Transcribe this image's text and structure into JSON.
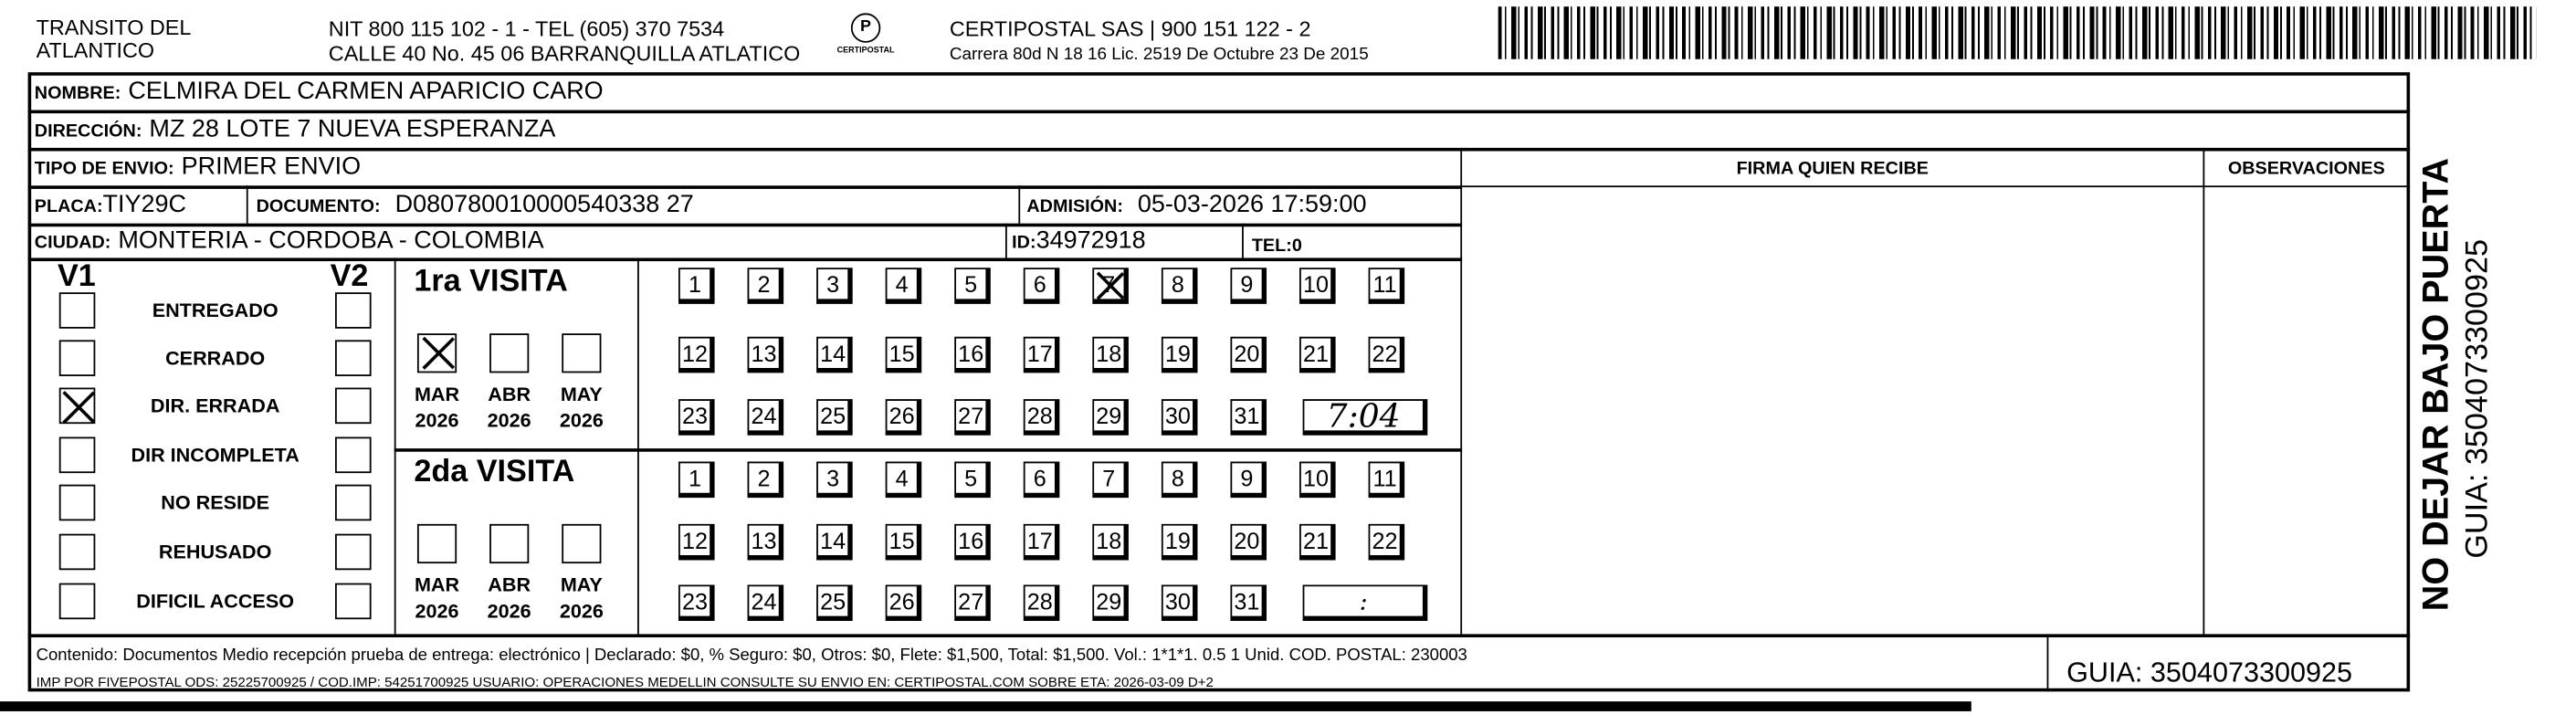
{
  "header": {
    "org_line1": "TRANSITO DEL",
    "org_line2": "ATLANTICO",
    "nit_line": "NIT 800 115 102 - 1 - TEL (605) 370 7534",
    "address_line": "CALLE 40 No. 45 06 BARRANQUILLA ATLATICO",
    "logo_text": "CERTIPOSTAL",
    "company_line": "CERTIPOSTAL SAS | 900 151 122 - 2",
    "license_line": "Carrera 80d N 18 16  Lic. 2519 De Octubre 23 De 2015"
  },
  "fields": {
    "nombre_label": "NOMBRE:",
    "nombre": "CELMIRA DEL CARMEN APARICIO CARO",
    "direccion_label": "DIRECCIÓN:",
    "direccion": "MZ 28 LOTE 7 NUEVA ESPERANZA",
    "tipo_label": "TIPO DE ENVIO:",
    "tipo": "PRIMER ENVIO",
    "placa_label": "PLACA:",
    "placa": "TIY29C",
    "documento_label": "DOCUMENTO:",
    "documento": "D080780010000540338 27",
    "admision_label": "ADMISIÓN:",
    "admision": "05-03-2026 17:59:00",
    "ciudad_label": "CIUDAD:",
    "ciudad": "MONTERIA - CORDOBA - COLOMBIA",
    "id_label": "ID:",
    "id": "34972918",
    "tel_label": "TEL:",
    "tel": "0"
  },
  "firma_label": "FIRMA QUIEN RECIBE",
  "observaciones_label": "OBSERVACIONES",
  "status": {
    "v1_label": "V1",
    "v2_label": "V2",
    "items": [
      {
        "label": "ENTREGADO",
        "v1": false,
        "v2": false
      },
      {
        "label": "CERRADO",
        "v1": false,
        "v2": false
      },
      {
        "label": "DIR. ERRADA",
        "v1": true,
        "v2": false
      },
      {
        "label": "DIR INCOMPLETA",
        "v1": false,
        "v2": false
      },
      {
        "label": "NO RESIDE",
        "v1": false,
        "v2": false
      },
      {
        "label": "REHUSADO",
        "v1": false,
        "v2": false
      },
      {
        "label": "DIFICIL ACCESO",
        "v1": false,
        "v2": false
      }
    ]
  },
  "visits": [
    {
      "label": "1ra VISITA",
      "months": [
        {
          "m": "MAR",
          "y": "2026",
          "checked": true
        },
        {
          "m": "ABR",
          "y": "2026",
          "checked": false
        },
        {
          "m": "MAY",
          "y": "2026",
          "checked": false
        }
      ],
      "checked_day": 7,
      "time": "7:04"
    },
    {
      "label": "2da VISITA",
      "months": [
        {
          "m": "MAR",
          "y": "2026",
          "checked": false
        },
        {
          "m": "ABR",
          "y": "2026",
          "checked": false
        },
        {
          "m": "MAY",
          "y": "2026",
          "checked": false
        }
      ],
      "checked_day": null,
      "time": ":"
    }
  ],
  "days": [
    "1",
    "2",
    "3",
    "4",
    "5",
    "6",
    "7",
    "8",
    "9",
    "10",
    "11",
    "12",
    "13",
    "14",
    "15",
    "16",
    "17",
    "18",
    "19",
    "20",
    "21",
    "22",
    "23",
    "24",
    "25",
    "26",
    "27",
    "28",
    "29",
    "30",
    "31"
  ],
  "footer": {
    "line1": "Contenido: Documentos Medio recepción prueba de entrega: electrónico | Declarado: $0, % Seguro: $0, Otros: $0, Flete: $1,500, Total: $1,500. Vol.: 1*1*1. 0.5  1 Unid. COD. POSTAL: 230003",
    "line2": "IMP POR FIVEPOSTAL ODS: 25225700925 / COD.IMP: 54251700925 USUARIO: OPERACIONES MEDELLIN CONSULTE SU ENVIO EN: CERTIPOSTAL.COM SOBRE ETA: 2026-03-09 D+2",
    "guia": "GUIA: 3504073300925"
  },
  "side": {
    "warning": "NO DEJAR BAJO PUERTA",
    "guia": "GUIA: 3504073300925"
  }
}
